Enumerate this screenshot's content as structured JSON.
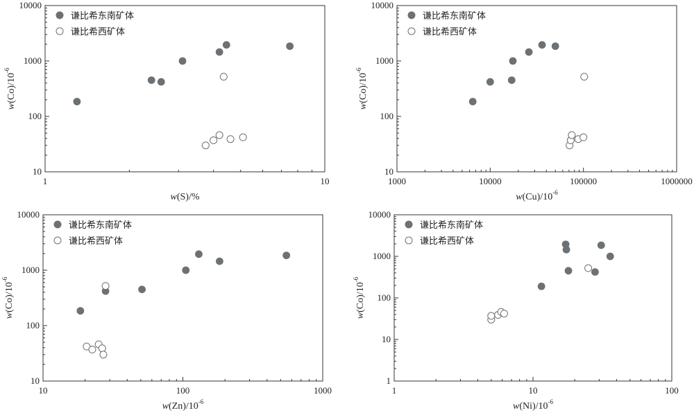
{
  "chart_data": [
    {
      "type": "scatter",
      "xscale": "log",
      "yscale": "log",
      "xlim": [
        1,
        10
      ],
      "ylim": [
        10,
        10000
      ],
      "xticks": [
        "1",
        "10"
      ],
      "yticks": [
        "10",
        "100",
        "1000",
        "10000"
      ],
      "xlabel": {
        "var": "w",
        "open": "(S)/%",
        "sup": ""
      },
      "ylabel": {
        "var": "w",
        "open": "(Co)/10",
        "sup": "-6"
      },
      "legend_placement": "top-left",
      "series": [
        {
          "name": "谦比希东南矿体",
          "marker": "filled",
          "color": "#6b7175",
          "points": [
            [
              1.3,
              185
            ],
            [
              2.4,
              450
            ],
            [
              2.6,
              420
            ],
            [
              3.1,
              1000
            ],
            [
              4.2,
              1450
            ],
            [
              4.45,
              1950
            ],
            [
              7.5,
              1850
            ]
          ]
        },
        {
          "name": "谦比希西矿体",
          "marker": "open",
          "color": "#6b7175",
          "points": [
            [
              3.75,
              30
            ],
            [
              4.0,
              37
            ],
            [
              4.2,
              46
            ],
            [
              4.35,
              520
            ],
            [
              4.6,
              39
            ],
            [
              5.1,
              42
            ]
          ]
        }
      ]
    },
    {
      "type": "scatter",
      "xscale": "log",
      "yscale": "log",
      "xlim": [
        1000,
        1000000
      ],
      "ylim": [
        10,
        10000
      ],
      "xticks": [
        "1000",
        "10000",
        "100000",
        "1000000"
      ],
      "yticks": [
        "10",
        "100",
        "1000",
        "10000"
      ],
      "xlabel": {
        "var": "w",
        "open": "(Cu)/10",
        "sup": "-6"
      },
      "ylabel": {
        "var": "w",
        "open": "(Co)/10",
        "sup": "-6"
      },
      "legend_placement": "top-left",
      "series": [
        {
          "name": "谦比希东南矿体",
          "marker": "filled",
          "color": "#6b7175",
          "points": [
            [
              6500,
              185
            ],
            [
              10000,
              420
            ],
            [
              17000,
              450
            ],
            [
              17500,
              1000
            ],
            [
              26000,
              1450
            ],
            [
              36000,
              1950
            ],
            [
              50000,
              1850
            ]
          ]
        },
        {
          "name": "谦比希西矿体",
          "marker": "open",
          "color": "#6b7175",
          "points": [
            [
              71000,
              30
            ],
            [
              73000,
              37
            ],
            [
              75000,
              46
            ],
            [
              88000,
              39
            ],
            [
              100000,
              42
            ],
            [
              102000,
              520
            ]
          ]
        }
      ]
    },
    {
      "type": "scatter",
      "xscale": "log",
      "yscale": "log",
      "xlim": [
        10,
        1000
      ],
      "ylim": [
        10,
        10000
      ],
      "xticks": [
        "10",
        "100",
        "1000"
      ],
      "yticks": [
        "10",
        "100",
        "1000",
        "10000"
      ],
      "xlabel": {
        "var": "w",
        "open": "(Zn)/10",
        "sup": "-6"
      },
      "ylabel": {
        "var": "w",
        "open": "(Co)/10",
        "sup": "-6"
      },
      "legend_placement": "top-left",
      "series": [
        {
          "name": "谦比希东南矿体",
          "marker": "filled",
          "color": "#6b7175",
          "points": [
            [
              18.5,
              185
            ],
            [
              28,
              420
            ],
            [
              51,
              450
            ],
            [
              105,
              1000
            ],
            [
              130,
              1950
            ],
            [
              183,
              1450
            ],
            [
              550,
              1850
            ]
          ]
        },
        {
          "name": "谦比希西矿体",
          "marker": "open",
          "color": "#6b7175",
          "points": [
            [
              20.5,
              42
            ],
            [
              22.5,
              37
            ],
            [
              25,
              46
            ],
            [
              26.5,
              39
            ],
            [
              27,
              30
            ],
            [
              28,
              520
            ]
          ]
        }
      ]
    },
    {
      "type": "scatter",
      "xscale": "log",
      "yscale": "log",
      "xlim": [
        1,
        100
      ],
      "ylim": [
        1,
        10000
      ],
      "xticks": [
        "1",
        "10",
        "100"
      ],
      "yticks": [
        "1",
        "10",
        "100",
        "1000",
        "10000"
      ],
      "xlabel": {
        "var": "w",
        "open": "(Ni)/10",
        "sup": "-6"
      },
      "ylabel": {
        "var": "w",
        "open": "(Co)/10",
        "sup": "-6"
      },
      "legend_placement": "top-left",
      "series": [
        {
          "name": "谦比希东南矿体",
          "marker": "filled",
          "color": "#6b7175",
          "points": [
            [
              11.5,
              190
            ],
            [
              17.2,
              1950
            ],
            [
              17.4,
              1450
            ],
            [
              18,
              450
            ],
            [
              28,
              420
            ],
            [
              31,
              1850
            ],
            [
              36,
              1000
            ]
          ]
        },
        {
          "name": "谦比希西矿体",
          "marker": "open",
          "color": "#6b7175",
          "points": [
            [
              5,
              30
            ],
            [
              5,
              37
            ],
            [
              5.6,
              39
            ],
            [
              5.9,
              46
            ],
            [
              6.2,
              42
            ],
            [
              25,
              520
            ]
          ]
        }
      ]
    }
  ]
}
